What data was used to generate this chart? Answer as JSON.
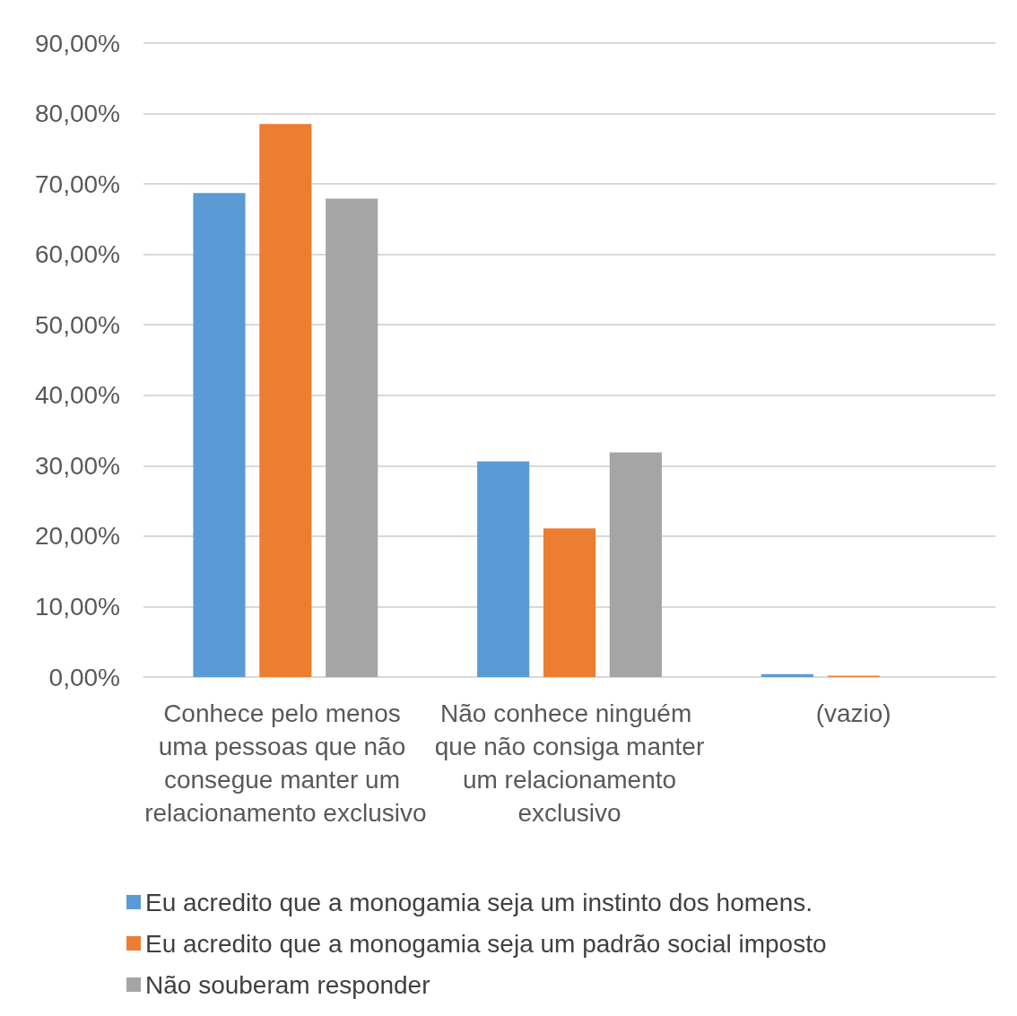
{
  "chart_data": {
    "type": "bar",
    "categories": [
      "Conhece pelo menos uma pessoas que não consegue manter um relacionamento exclusivo",
      "Não conhece ninguém que não consiga manter um relacionamento exclusivo",
      "(vazio)"
    ],
    "series": [
      {
        "name": "Eu acredito que a monogamia seja um instinto dos homens.",
        "color": "#5b9bd5",
        "values": [
          68.7,
          30.6,
          0.4
        ]
      },
      {
        "name": "Eu acredito que a monogamia seja um padrão social imposto",
        "color": "#ed7d31",
        "values": [
          78.5,
          21.1,
          0.2
        ]
      },
      {
        "name": "Não souberam responder",
        "color": "#a5a5a5",
        "values": [
          67.9,
          31.9,
          0
        ]
      }
    ],
    "ylim": [
      0,
      90
    ],
    "yticks": [
      {
        "value": 0,
        "label": "0,00%"
      },
      {
        "value": 10,
        "label": "10,00%"
      },
      {
        "value": 20,
        "label": "20,00%"
      },
      {
        "value": 30,
        "label": "30,00%"
      },
      {
        "value": 40,
        "label": "40,00%"
      },
      {
        "value": 50,
        "label": "50,00%"
      },
      {
        "value": 60,
        "label": "60,00%"
      },
      {
        "value": 70,
        "label": "70,00%"
      },
      {
        "value": 80,
        "label": "80,00%"
      },
      {
        "value": 90,
        "label": "90,00%"
      }
    ],
    "grid": "y",
    "legend": "bottom"
  }
}
